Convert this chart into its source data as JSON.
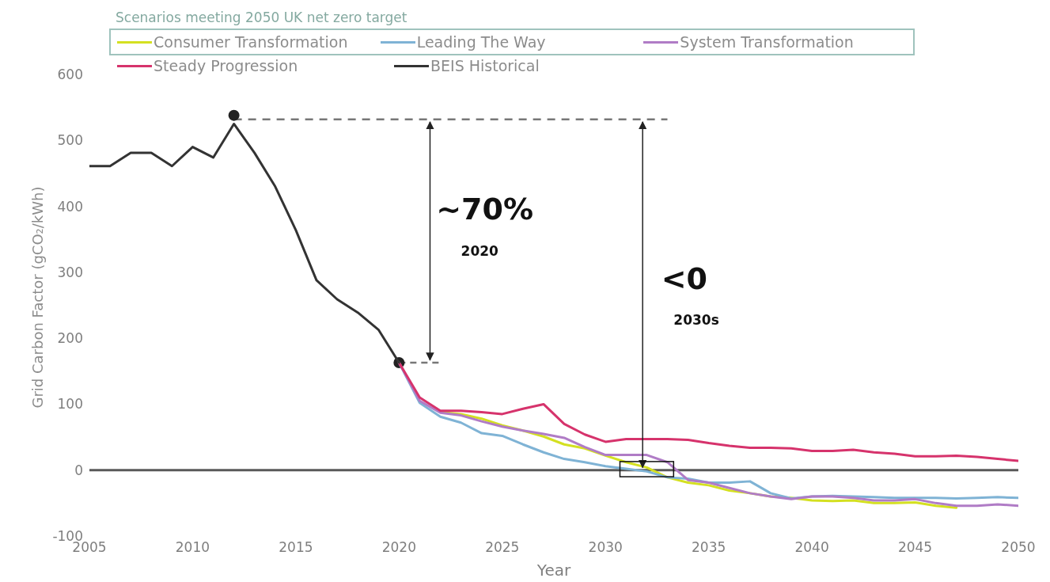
{
  "chart_data": {
    "type": "line",
    "legend_title": "Scenarios meeting 2050 UK net zero target",
    "ylabel": "Grid Carbon Factor (gCO₂/kWh)",
    "xlabel": "Year",
    "xlim": [
      2005,
      2050
    ],
    "xticks": [
      2005,
      2010,
      2015,
      2020,
      2025,
      2030,
      2035,
      2040,
      2045,
      2050
    ],
    "ylim": [
      -100,
      600
    ],
    "yticks": [
      -100,
      0,
      100,
      200,
      300,
      400,
      500,
      600
    ],
    "grid": false,
    "legend": "top",
    "marker": "none",
    "line_style": "solid",
    "ref_lines": [
      {
        "axis": "y",
        "value": 0,
        "color": "#595959"
      }
    ],
    "annotations": [
      "~70%",
      "2020",
      "<0",
      "2030s"
    ],
    "series": [
      {
        "name": "Consumer Transformation",
        "color": "#d4e021",
        "x": [
          2022,
          2023,
          2024,
          2025,
          2026,
          2027,
          2028,
          2029,
          2030,
          2031,
          2032,
          2033,
          2034,
          2035,
          2036,
          2037,
          2038,
          2039,
          2040,
          2041,
          2042,
          2043,
          2044,
          2045,
          2046,
          2047
        ],
        "values": [
          88,
          85,
          78,
          68,
          60,
          51,
          39,
          33,
          22,
          12,
          4,
          -11,
          -19,
          -23,
          -31,
          -35,
          -40,
          -42,
          -46,
          -47,
          -46,
          -50,
          -50,
          -49,
          -54,
          -57
        ]
      },
      {
        "name": "Leading The Way",
        "color": "#7fb3d5",
        "x": [
          2020,
          2021,
          2022,
          2023,
          2024,
          2025,
          2026,
          2027,
          2028,
          2029,
          2030,
          2031,
          2032,
          2033,
          2034,
          2035,
          2036,
          2037,
          2038,
          2039,
          2040,
          2041,
          2042,
          2043,
          2044,
          2045,
          2046,
          2047,
          2048,
          2049,
          2050
        ],
        "values": [
          163,
          102,
          81,
          72,
          56,
          52,
          39,
          27,
          17,
          12,
          6,
          2,
          -2,
          -11,
          -13,
          -19,
          -19,
          -17,
          -35,
          -43,
          -40,
          -39,
          -40,
          -41,
          -42,
          -42,
          -42,
          -43,
          -42,
          -41,
          -42
        ]
      },
      {
        "name": "System Transformation",
        "color": "#b07cc6",
        "x": [
          2020,
          2021,
          2022,
          2023,
          2024,
          2025,
          2026,
          2027,
          2028,
          2029,
          2030,
          2031,
          2032,
          2033,
          2034,
          2035,
          2036,
          2037,
          2038,
          2039,
          2040,
          2041,
          2042,
          2043,
          2044,
          2045,
          2046,
          2047,
          2048,
          2049,
          2050
        ],
        "values": [
          163,
          105,
          87,
          83,
          74,
          66,
          60,
          55,
          49,
          35,
          23,
          23,
          23,
          12,
          -15,
          -19,
          -27,
          -35,
          -40,
          -44,
          -40,
          -40,
          -42,
          -46,
          -46,
          -44,
          -50,
          -54,
          -54,
          -52,
          -54
        ]
      },
      {
        "name": "Steady Progression",
        "color": "#d6336c",
        "x": [
          2020,
          2021,
          2022,
          2023,
          2024,
          2025,
          2026,
          2027,
          2028,
          2029,
          2030,
          2031,
          2032,
          2033,
          2034,
          2035,
          2036,
          2037,
          2038,
          2039,
          2040,
          2041,
          2042,
          2043,
          2044,
          2045,
          2046,
          2047,
          2048,
          2049,
          2050
        ],
        "values": [
          163,
          110,
          90,
          90,
          88,
          85,
          93,
          100,
          70,
          54,
          43,
          47,
          47,
          47,
          46,
          41,
          37,
          34,
          34,
          33,
          29,
          29,
          31,
          27,
          25,
          21,
          21,
          22,
          20,
          17,
          14
        ]
      },
      {
        "name": "BEIS Historical",
        "color": "#333333",
        "x": [
          2005,
          2006,
          2007,
          2008,
          2009,
          2010,
          2011,
          2012,
          2013,
          2014,
          2015,
          2016,
          2017,
          2018,
          2019,
          2020
        ],
        "values": [
          461,
          461,
          481,
          481,
          461,
          490,
          474,
          525,
          481,
          430,
          364,
          288,
          259,
          239,
          213,
          163
        ]
      }
    ]
  }
}
